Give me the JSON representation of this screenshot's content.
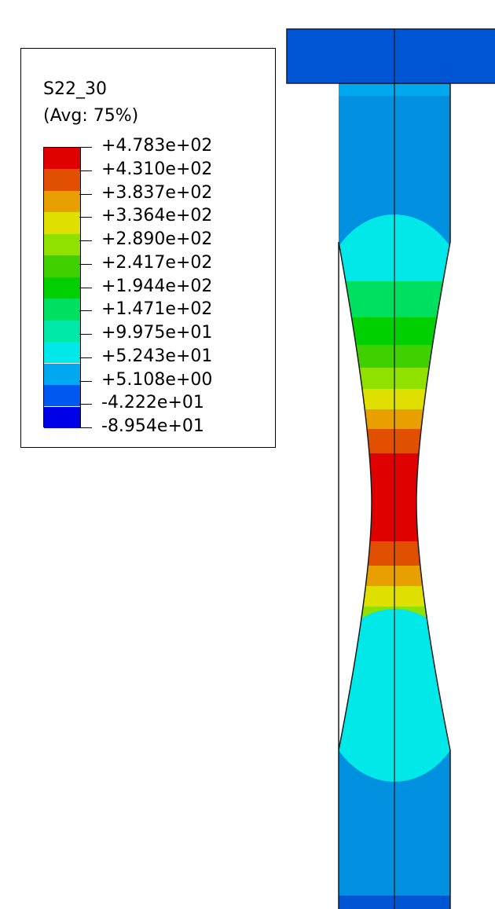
{
  "legend": {
    "variable": "S22_30",
    "averaging": "(Avg: 75%)",
    "levels": [
      "+4.783e+02",
      "+4.310e+02",
      "+3.837e+02",
      "+3.364e+02",
      "+2.890e+02",
      "+2.417e+02",
      "+1.944e+02",
      "+1.471e+02",
      "+9.975e+01",
      "+5.243e+01",
      "+5.108e+00",
      "-4.222e+01",
      "-8.954e+01"
    ],
    "colors_top_to_bottom": [
      "#e00000",
      "#e05000",
      "#e8a000",
      "#e0e000",
      "#90e000",
      "#40d000",
      "#00d000",
      "#00e060",
      "#00e8a8",
      "#00e8e8",
      "#00a8f0",
      "#0058f0",
      "#0000e8"
    ]
  },
  "model": {
    "grip_color": "#0055d4",
    "shank_color": "#0090e0",
    "edge_color": "#1a1a1a"
  }
}
